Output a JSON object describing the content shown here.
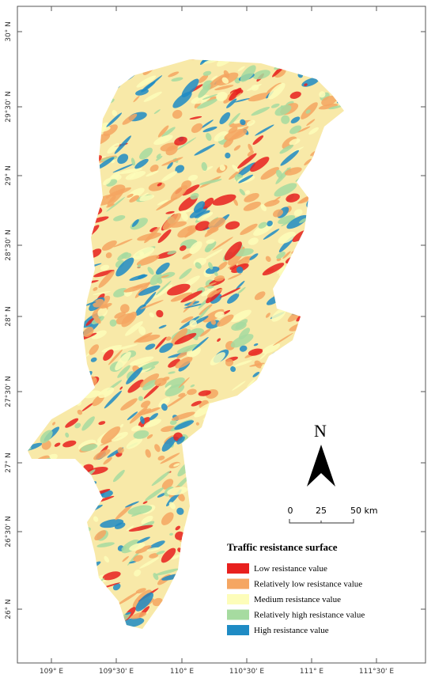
{
  "map": {
    "latitude_labels": [
      "30° N",
      "29°30' N",
      "29° N",
      "28°30' N",
      "28° N",
      "27°30' N",
      "27° N",
      "26°30' N",
      "26° N"
    ],
    "longitude_labels": [
      "109° E",
      "109°30' E",
      "110° E",
      "110°30' E",
      "111° E",
      "111°30' E"
    ],
    "north_label": "N",
    "scale_bar": {
      "labels": [
        "0",
        "25",
        "50 km"
      ]
    },
    "legend": {
      "title": "Traffic resistance surface",
      "items": [
        {
          "label": "Low resistance value",
          "color": "#e8201e"
        },
        {
          "label": "Relatively low resistance value",
          "color": "#f5a662"
        },
        {
          "label": "Medium resistance value",
          "color": "#fdfdba"
        },
        {
          "label": "Relatively high resistance value",
          "color": "#a6dba0"
        },
        {
          "label": "High resistance value",
          "color": "#1f8bc4"
        }
      ]
    }
  }
}
